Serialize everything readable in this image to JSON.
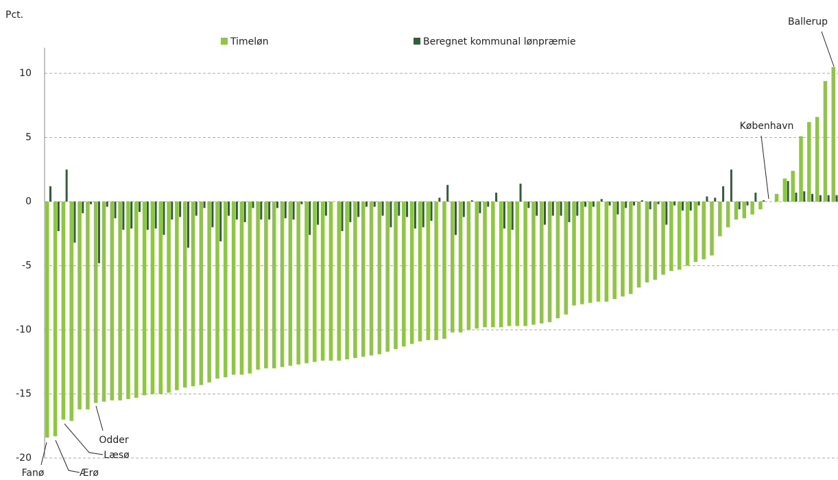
{
  "chart_data": {
    "type": "bar",
    "y_label": "Pct.",
    "categories": [
      "Fanø",
      "Ærø",
      "Læsø",
      null,
      null,
      null,
      "Odder",
      null,
      null,
      null,
      null,
      null,
      null,
      null,
      null,
      null,
      null,
      null,
      null,
      null,
      null,
      null,
      null,
      null,
      null,
      null,
      null,
      null,
      null,
      null,
      null,
      null,
      null,
      null,
      null,
      null,
      null,
      null,
      null,
      null,
      null,
      null,
      null,
      null,
      null,
      null,
      null,
      null,
      null,
      null,
      null,
      null,
      null,
      null,
      null,
      null,
      null,
      null,
      null,
      null,
      null,
      null,
      null,
      null,
      null,
      null,
      null,
      null,
      null,
      null,
      null,
      null,
      null,
      null,
      null,
      null,
      null,
      null,
      null,
      null,
      null,
      null,
      null,
      null,
      null,
      null,
      null,
      null,
      null,
      "København",
      null,
      null,
      null,
      null,
      null,
      null,
      null,
      "Ballerup"
    ],
    "series": [
      {
        "name": "Timeløn",
        "color": "#8dc63f",
        "values": [
          -18.4,
          -18.3,
          -17.0,
          -17.1,
          -16.2,
          -16.2,
          -15.7,
          -15.6,
          -15.5,
          -15.5,
          -15.4,
          -15.3,
          -15.1,
          -15.0,
          -15.0,
          -14.9,
          -14.7,
          -14.5,
          -14.4,
          -14.3,
          -14.1,
          -13.8,
          -13.7,
          -13.5,
          -13.5,
          -13.4,
          -13.1,
          -13.0,
          -13.0,
          -12.9,
          -12.8,
          -12.7,
          -12.6,
          -12.5,
          -12.4,
          -12.4,
          -12.4,
          -12.3,
          -12.2,
          -12.1,
          -12.0,
          -11.9,
          -11.7,
          -11.5,
          -11.3,
          -11.1,
          -10.9,
          -10.8,
          -10.8,
          -10.7,
          -10.2,
          -10.2,
          -10.0,
          -9.9,
          -9.8,
          -9.8,
          -9.8,
          -9.7,
          -9.7,
          -9.7,
          -9.6,
          -9.5,
          -9.4,
          -9.1,
          -8.8,
          -8.1,
          -8.0,
          -7.9,
          -7.8,
          -7.8,
          -7.6,
          -7.4,
          -7.2,
          -6.7,
          -6.3,
          -6.1,
          -5.7,
          -5.4,
          -5.3,
          -5.0,
          -4.7,
          -4.5,
          -4.2,
          -2.7,
          -2.0,
          -1.4,
          -1.3,
          -1.0,
          -0.6,
          0.0,
          0.6,
          1.8,
          2.4,
          5.1,
          6.2,
          6.6,
          9.4,
          10.5
        ]
      },
      {
        "name": "Beregnet kommunal lønpræmie",
        "color": "#2e5e3a",
        "values": [
          1.2,
          -2.3,
          2.5,
          -3.2,
          -0.9,
          -0.2,
          -4.8,
          -0.4,
          -1.3,
          -2.2,
          -2.1,
          -0.8,
          -2.2,
          -2.1,
          -2.6,
          -1.4,
          -1.2,
          -3.6,
          -1.1,
          -0.5,
          -2.0,
          -3.1,
          -1.1,
          -1.4,
          -1.6,
          -0.5,
          -1.4,
          -1.4,
          -0.5,
          -1.3,
          -1.4,
          -0.2,
          -2.6,
          -1.8,
          -1.1,
          0.0,
          -2.3,
          -1.6,
          -1.2,
          -0.4,
          -0.4,
          -1.1,
          -2.0,
          -1.1,
          -1.2,
          -2.1,
          -2.0,
          -1.5,
          0.3,
          1.3,
          -2.6,
          -1.2,
          0.1,
          -0.9,
          -0.4,
          0.7,
          -2.1,
          -2.2,
          1.4,
          -0.5,
          -1.1,
          -1.8,
          -1.1,
          -1.1,
          -1.6,
          -1.1,
          -0.4,
          -0.4,
          0.2,
          -0.3,
          -1.0,
          -0.5,
          -0.3,
          0.1,
          -0.6,
          -0.2,
          -1.8,
          -0.3,
          -0.7,
          -0.7,
          -0.3,
          0.4,
          0.3,
          1.2,
          2.5,
          -0.6,
          -0.3,
          0.7,
          0.1,
          0.0,
          0.0,
          1.6,
          0.7,
          0.8,
          0.6,
          0.5,
          0.5,
          0.5
        ]
      }
    ],
    "ylim": [
      -20,
      12
    ],
    "yticks": [
      10,
      5,
      0,
      -5,
      -10,
      -15,
      -20
    ],
    "grid": true
  }
}
